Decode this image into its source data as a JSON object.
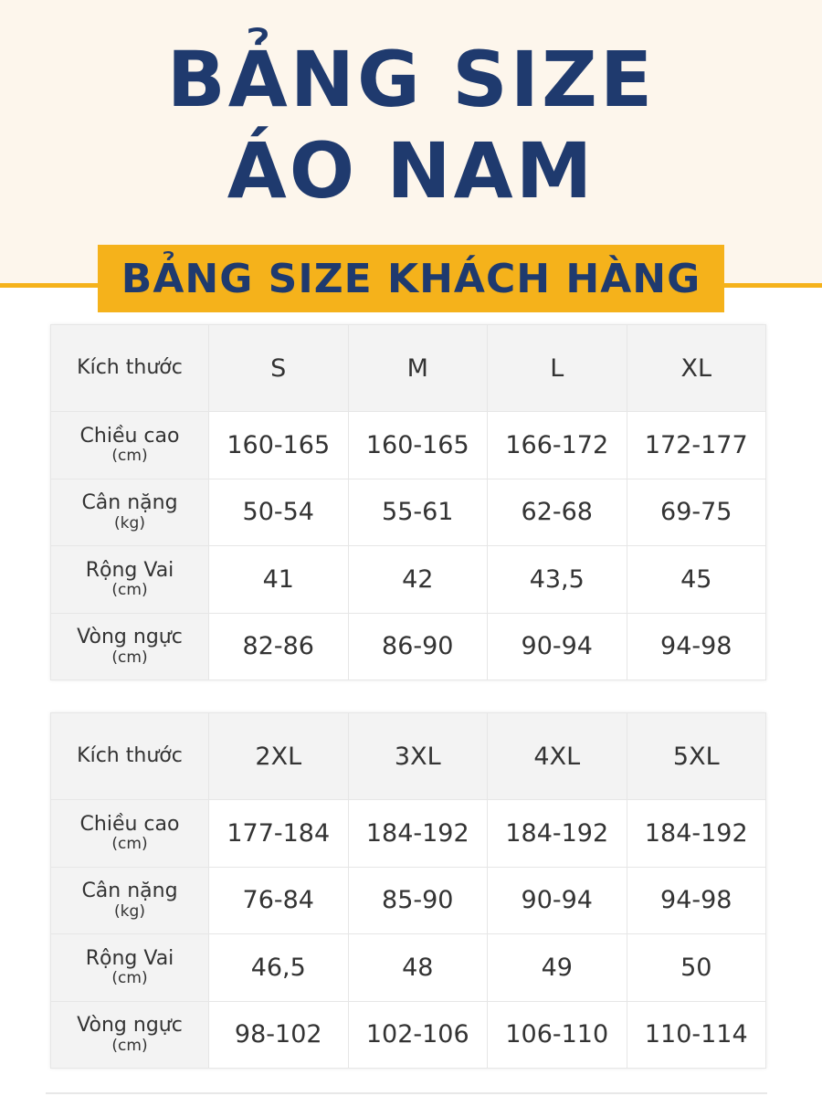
{
  "title": {
    "line1": "BẢNG SIZE",
    "line2": "ÁO NAM"
  },
  "banner": "BẢNG SIZE KHÁCH HÀNG",
  "colors": {
    "navy": "#1f3a6e",
    "yellow": "#f5b21b",
    "background": "#fdf6ec"
  },
  "row_labels": {
    "size": "Kích thước",
    "height": "Chiều cao",
    "height_unit": "(cm)",
    "weight": "Cân nặng",
    "weight_unit": "(kg)",
    "shoulder": "Rộng Vai",
    "shoulder_unit": "(cm)",
    "chest": "Vòng ngực",
    "chest_unit": "(cm)"
  },
  "tables": [
    {
      "sizes": [
        "S",
        "M",
        "L",
        "XL"
      ],
      "height": [
        "160-165",
        "160-165",
        "166-172",
        "172-177"
      ],
      "weight": [
        "50-54",
        "55-61",
        "62-68",
        "69-75"
      ],
      "shoulder": [
        "41",
        "42",
        "43,5",
        "45"
      ],
      "chest": [
        "82-86",
        "86-90",
        "90-94",
        "94-98"
      ]
    },
    {
      "sizes": [
        "2XL",
        "3XL",
        "4XL",
        "5XL"
      ],
      "height": [
        "177-184",
        "184-192",
        "184-192",
        "184-192"
      ],
      "weight": [
        "76-84",
        "85-90",
        "90-94",
        "94-98"
      ],
      "shoulder": [
        "46,5",
        "48",
        "49",
        "50"
      ],
      "chest": [
        "98-102",
        "102-106",
        "106-110",
        "110-114"
      ]
    }
  ]
}
